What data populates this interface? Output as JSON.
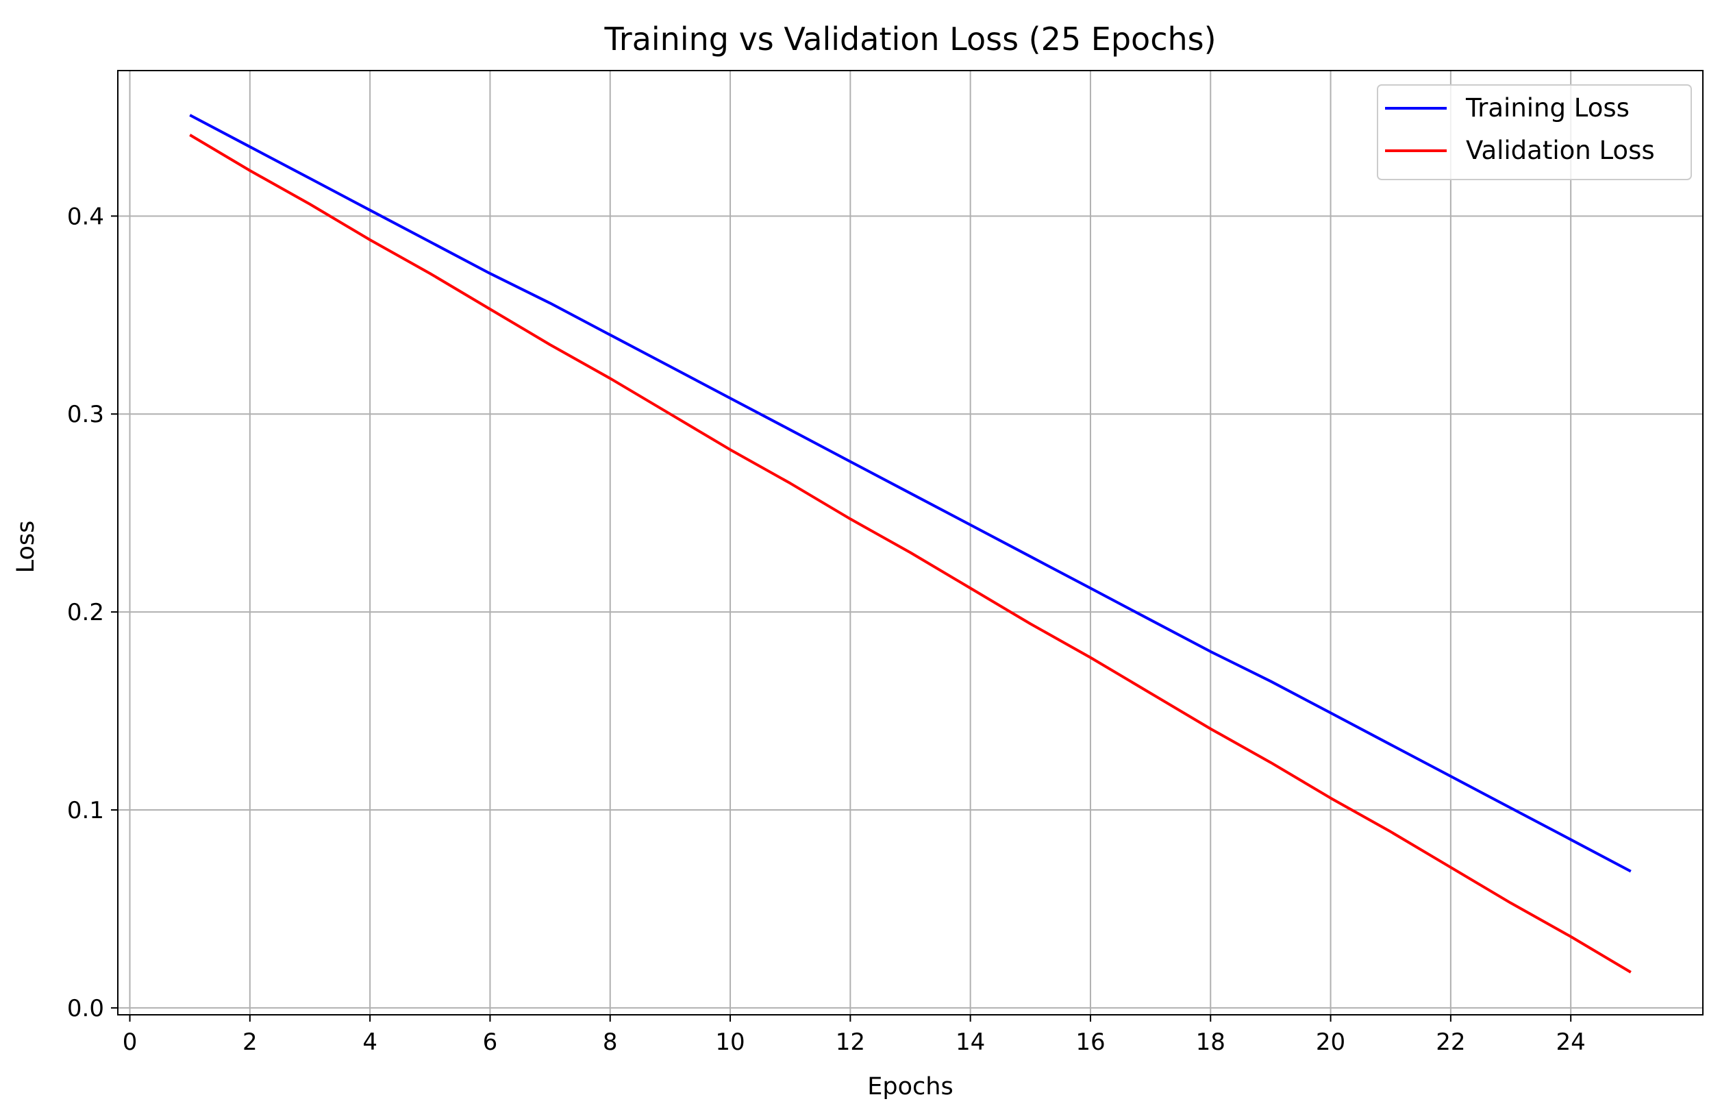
{
  "chart_data": {
    "type": "line",
    "title": "Training vs Validation Loss (25 Epochs)",
    "xlabel": "Epochs",
    "ylabel": "Loss",
    "xlim": [
      -0.2,
      26.2
    ],
    "ylim": [
      -0.0035,
      0.4735
    ],
    "x_ticks": [
      0,
      2,
      4,
      6,
      8,
      10,
      12,
      14,
      16,
      18,
      20,
      22,
      24
    ],
    "x_tick_labels": [
      "0",
      "2",
      "4",
      "6",
      "8",
      "10",
      "12",
      "14",
      "16",
      "18",
      "20",
      "22",
      "24"
    ],
    "y_ticks": [
      0.0,
      0.1,
      0.2,
      0.3,
      0.4
    ],
    "y_tick_labels": [
      "0.0",
      "0.1",
      "0.2",
      "0.3",
      "0.4"
    ],
    "grid": true,
    "legend_position": "top-right",
    "x": [
      1,
      2,
      3,
      4,
      5,
      6,
      7,
      8,
      9,
      10,
      11,
      12,
      13,
      14,
      15,
      16,
      17,
      18,
      19,
      20,
      21,
      22,
      23,
      24,
      25
    ],
    "series": [
      {
        "name": "Training Loss",
        "color": "#0000ff",
        "values": [
          0.451,
          0.435,
          0.419,
          0.403,
          0.387,
          0.371,
          0.356,
          0.34,
          0.324,
          0.308,
          0.292,
          0.276,
          0.26,
          0.244,
          0.228,
          0.212,
          0.196,
          0.18,
          0.165,
          0.149,
          0.133,
          0.117,
          0.101,
          0.085,
          0.069
        ]
      },
      {
        "name": "Validation Loss",
        "color": "#ff0000",
        "values": [
          0.441,
          0.423,
          0.406,
          0.388,
          0.371,
          0.353,
          0.335,
          0.318,
          0.3,
          0.282,
          0.265,
          0.247,
          0.23,
          0.212,
          0.194,
          0.177,
          0.159,
          0.141,
          0.124,
          0.106,
          0.089,
          0.071,
          0.053,
          0.036,
          0.018
        ]
      }
    ]
  }
}
